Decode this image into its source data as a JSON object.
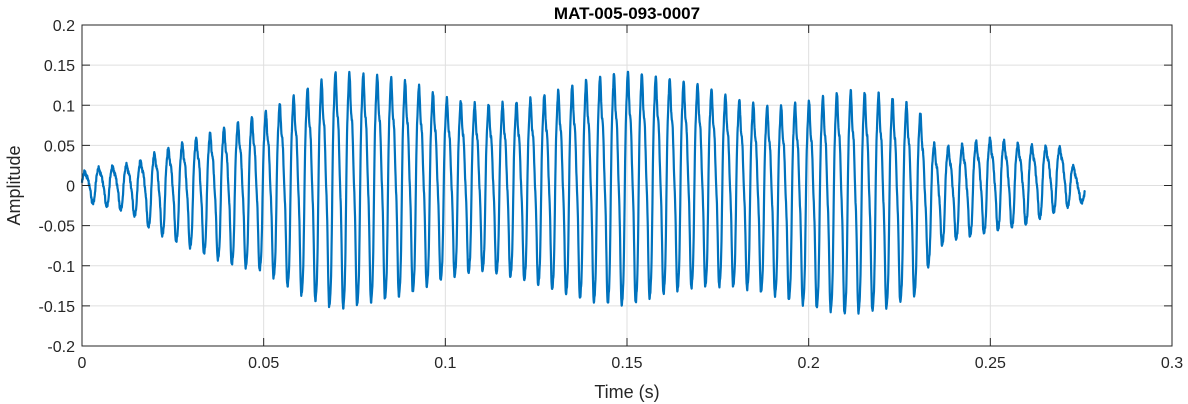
{
  "chart_data": {
    "type": "line",
    "title": "MAT-005-093-0007",
    "xlabel": "Time (s)",
    "ylabel": "Amplitude",
    "xlim": [
      0,
      0.3
    ],
    "ylim": [
      -0.2,
      0.2
    ],
    "xticks": [
      0,
      0.05,
      0.1,
      0.15,
      0.2,
      0.25,
      0.3
    ],
    "xtick_labels": [
      "0",
      "0.05",
      "0.1",
      "0.15",
      "0.2",
      "0.25",
      "0.3"
    ],
    "yticks": [
      -0.2,
      -0.15,
      -0.1,
      -0.05,
      0,
      0.05,
      0.1,
      0.15,
      0.2
    ],
    "ytick_labels": [
      "-0.2",
      "-0.15",
      "-0.1",
      "-0.05",
      "0",
      "0.05",
      "0.1",
      "0.15",
      "0.2"
    ],
    "grid": true,
    "line_color": "#0072BD",
    "series": [
      {
        "x_start": 0,
        "x_end": 0.276,
        "oscillation_cycles": 72,
        "envelope": {
          "t": [
            0,
            0.005,
            0.01,
            0.015,
            0.02,
            0.03,
            0.04,
            0.05,
            0.06,
            0.07,
            0.08,
            0.09,
            0.1,
            0.11,
            0.12,
            0.13,
            0.14,
            0.15,
            0.16,
            0.17,
            0.18,
            0.19,
            0.2,
            0.21,
            0.22,
            0.23,
            0.235,
            0.24,
            0.25,
            0.26,
            0.27,
            0.276
          ],
          "max": [
            0.02,
            0.027,
            0.03,
            0.035,
            0.05,
            0.07,
            0.09,
            0.11,
            0.14,
            0.17,
            0.165,
            0.155,
            0.13,
            0.12,
            0.125,
            0.14,
            0.16,
            0.17,
            0.16,
            0.15,
            0.13,
            0.12,
            0.13,
            0.145,
            0.14,
            0.12,
            0.06,
            0.06,
            0.07,
            0.06,
            0.055,
            0.0
          ],
          "min": [
            -0.02,
            -0.025,
            -0.03,
            -0.04,
            -0.06,
            -0.08,
            -0.1,
            -0.11,
            -0.14,
            -0.16,
            -0.15,
            -0.14,
            -0.12,
            -0.11,
            -0.12,
            -0.135,
            -0.15,
            -0.155,
            -0.14,
            -0.13,
            -0.13,
            -0.14,
            -0.155,
            -0.165,
            -0.16,
            -0.14,
            -0.08,
            -0.07,
            -0.06,
            -0.05,
            -0.03,
            -0.02
          ]
        }
      }
    ]
  }
}
